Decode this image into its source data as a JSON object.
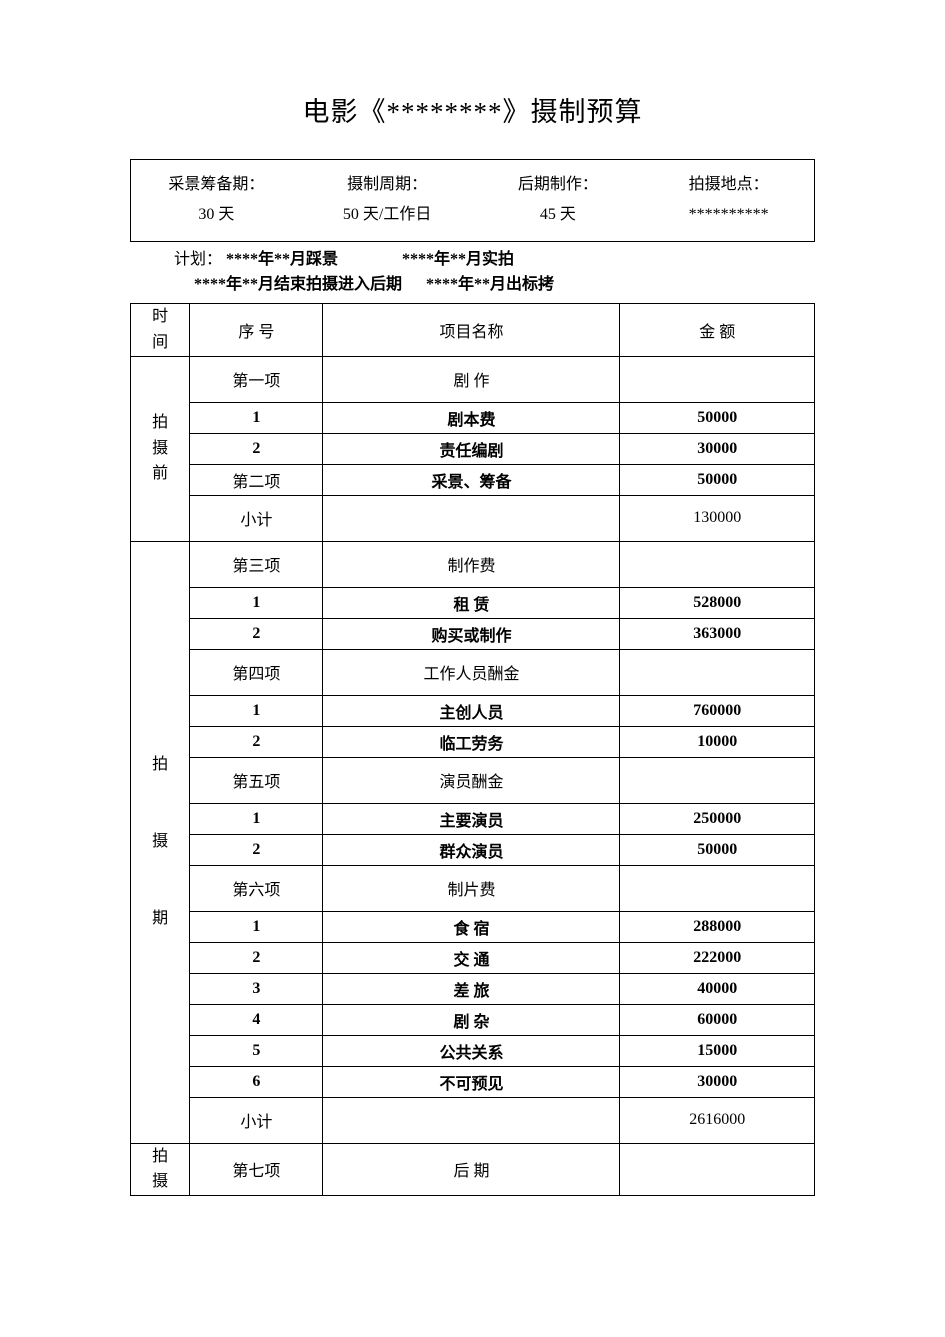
{
  "title": "电影《********》摄制预算",
  "info": {
    "prep_label": "采景筹备期：",
    "prep_value": "30 天",
    "shoot_label": "摄制周期：",
    "shoot_value": "50 天/工作日",
    "post_label": "后期制作：",
    "post_value": "45 天",
    "loc_label": "拍摄地点：",
    "loc_value": "**********"
  },
  "plan": {
    "label": "计划：",
    "l1a": "****年**月踩景",
    "l1b": "****年**月实拍",
    "l2a": "****年**月结束拍摄进入后期",
    "l2b": "****年**月出标拷"
  },
  "header": {
    "time": "时\n间",
    "no": "序 号",
    "item": "项目名称",
    "amount": "金 额"
  },
  "sec1": {
    "label": "拍\n摄\n前",
    "rows": [
      {
        "no": "第一项",
        "item": "剧 作",
        "amount": "",
        "bold": false,
        "tall": true
      },
      {
        "no": "1",
        "item": "剧本费",
        "amount": "50000",
        "bold": true,
        "tall": false
      },
      {
        "no": "2",
        "item": "责任编剧",
        "amount": "30000",
        "bold": true,
        "tall": false
      },
      {
        "no": "第二项",
        "item": "采景、筹备",
        "amount": "50000",
        "bold": true,
        "tall": false
      },
      {
        "no": "小计",
        "item": "",
        "amount": "130000",
        "bold": false,
        "tall": true
      }
    ]
  },
  "sec2": {
    "label": "拍\n\n\n摄\n\n\n期",
    "rows": [
      {
        "no": "第三项",
        "item": "制作费",
        "amount": "",
        "bold": false,
        "tall": true
      },
      {
        "no": "1",
        "item": "租 赁",
        "amount": "528000",
        "bold": true,
        "tall": false
      },
      {
        "no": "2",
        "item": "购买或制作",
        "amount": "363000",
        "bold": true,
        "tall": false
      },
      {
        "no": "第四项",
        "item": "工作人员酬金",
        "amount": "",
        "bold": false,
        "tall": true
      },
      {
        "no": "1",
        "item": "主创人员",
        "amount": "760000",
        "bold": true,
        "tall": false
      },
      {
        "no": "2",
        "item": "临工劳务",
        "amount": "10000",
        "bold": true,
        "tall": false
      },
      {
        "no": "第五项",
        "item": "演员酬金",
        "amount": "",
        "bold": false,
        "tall": true
      },
      {
        "no": "1",
        "item": "主要演员",
        "amount": "250000",
        "bold": true,
        "tall": false
      },
      {
        "no": "2",
        "item": "群众演员",
        "amount": "50000",
        "bold": true,
        "tall": false
      },
      {
        "no": "第六项",
        "item": "制片费",
        "amount": "",
        "bold": false,
        "tall": true
      },
      {
        "no": "1",
        "item": "食 宿",
        "amount": "288000",
        "bold": true,
        "tall": false
      },
      {
        "no": "2",
        "item": "交 通",
        "amount": "222000",
        "bold": true,
        "tall": false
      },
      {
        "no": "3",
        "item": "差 旅",
        "amount": "40000",
        "bold": true,
        "tall": false
      },
      {
        "no": "4",
        "item": "剧 杂",
        "amount": "60000",
        "bold": true,
        "tall": false
      },
      {
        "no": "5",
        "item": "公共关系",
        "amount": "15000",
        "bold": true,
        "tall": false
      },
      {
        "no": "6",
        "item": "不可预见",
        "amount": "30000",
        "bold": true,
        "tall": false
      },
      {
        "no": "小计",
        "item": "",
        "amount": "2616000",
        "bold": false,
        "tall": true
      }
    ]
  },
  "sec3": {
    "label": "拍\n摄",
    "rows": [
      {
        "no": "第七项",
        "item": "后 期",
        "amount": "",
        "bold": false,
        "tall": true
      }
    ]
  }
}
